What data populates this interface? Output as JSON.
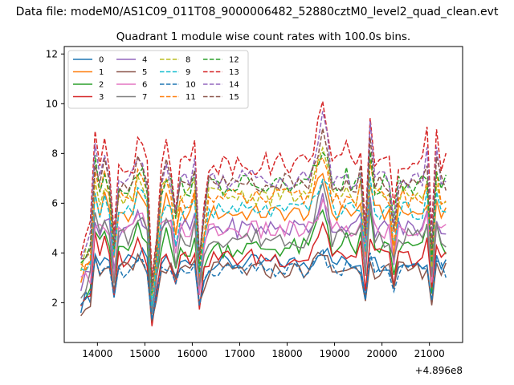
{
  "figure": {
    "suptitle": "Data file: modeM0/AS1C09_011T08_9000006482_52880cztM0_level2_quad_clean.evt",
    "offset_text": "+4.896e8"
  },
  "chart_data": {
    "type": "line",
    "title": "Quadrant 1 module wise count rates with 100.0s bins.",
    "xlabel": "",
    "ylabel": "",
    "x_offset": 489600000,
    "xlim": [
      13300,
      21700
    ],
    "ylim": [
      0.4,
      12.3
    ],
    "xticks": [
      14000,
      15000,
      16000,
      17000,
      18000,
      19000,
      20000,
      21000
    ],
    "yticks": [
      2,
      4,
      6,
      8,
      10,
      12
    ],
    "grid": false,
    "legend": {
      "placement": "top-left",
      "ncol": 4
    },
    "x": [
      13650,
      13750,
      13850,
      13950,
      14050,
      14150,
      14250,
      14350,
      14450,
      14550,
      14650,
      14750,
      14850,
      14950,
      15050,
      15150,
      15250,
      15350,
      15450,
      15550,
      15650,
      15750,
      15850,
      15950,
      16050,
      16150,
      16250,
      16350,
      16450,
      16550,
      16650,
      16750,
      16850,
      16950,
      17050,
      17150,
      17250,
      17350,
      17450,
      17550,
      17650,
      17750,
      17850,
      17950,
      18050,
      18150,
      18250,
      18350,
      18450,
      18550,
      18650,
      18750,
      18850,
      18950,
      19050,
      19150,
      19250,
      19350,
      19450,
      19550,
      19650,
      19750,
      19850,
      19950,
      20050,
      20150,
      20250,
      20350,
      20450,
      20550,
      20650,
      20750,
      20850,
      20950,
      21050,
      21150,
      21250,
      21350
    ],
    "series": [
      {
        "name": "0",
        "color": "#1f77b4",
        "dash": "solid",
        "base": 3.6,
        "noise": 0.35,
        "jump": 0.6
      },
      {
        "name": "1",
        "color": "#ff7f0e",
        "dash": "solid",
        "base": 5.6,
        "noise": 0.35,
        "jump": 1.6
      },
      {
        "name": "2",
        "color": "#2ca02c",
        "dash": "solid",
        "base": 4.2,
        "noise": 0.4,
        "jump": 1.6
      },
      {
        "name": "3",
        "color": "#d62728",
        "dash": "solid",
        "base": 3.8,
        "noise": 0.4,
        "jump": 1.4
      },
      {
        "name": "4",
        "color": "#9467bd",
        "dash": "solid",
        "base": 5.0,
        "noise": 0.4,
        "jump": 1.2
      },
      {
        "name": "5",
        "color": "#8c564b",
        "dash": "solid",
        "base": 3.3,
        "noise": 0.35,
        "jump": 0.7
      },
      {
        "name": "6",
        "color": "#e377c2",
        "dash": "solid",
        "base": 4.9,
        "noise": 0.4,
        "jump": 1.0
      },
      {
        "name": "7",
        "color": "#7f7f7f",
        "dash": "solid",
        "base": 4.6,
        "noise": 0.4,
        "jump": 2.0
      },
      {
        "name": "8",
        "color": "#bcbd22",
        "dash": "dashed",
        "base": 6.3,
        "noise": 0.4,
        "jump": 1.6
      },
      {
        "name": "9",
        "color": "#17becf",
        "dash": "dashed",
        "base": 5.7,
        "noise": 0.35,
        "jump": 1.4
      },
      {
        "name": "10",
        "color": "#1f77b4",
        "dash": "dashed",
        "base": 3.3,
        "noise": 0.3,
        "jump": 0.6
      },
      {
        "name": "11",
        "color": "#ff7f0e",
        "dash": "dashed",
        "base": 6.2,
        "noise": 0.4,
        "jump": 1.8
      },
      {
        "name": "12",
        "color": "#2ca02c",
        "dash": "dashed",
        "base": 6.7,
        "noise": 0.45,
        "jump": 1.6
      },
      {
        "name": "13",
        "color": "#d62728",
        "dash": "dashed",
        "base": 7.6,
        "noise": 0.45,
        "jump": 2.6
      },
      {
        "name": "14",
        "color": "#9467bd",
        "dash": "dashed",
        "base": 7.0,
        "noise": 0.45,
        "jump": 2.4
      },
      {
        "name": "15",
        "color": "#8c564b",
        "dash": "dashed",
        "base": 6.8,
        "noise": 0.4,
        "jump": 2.0
      }
    ]
  }
}
